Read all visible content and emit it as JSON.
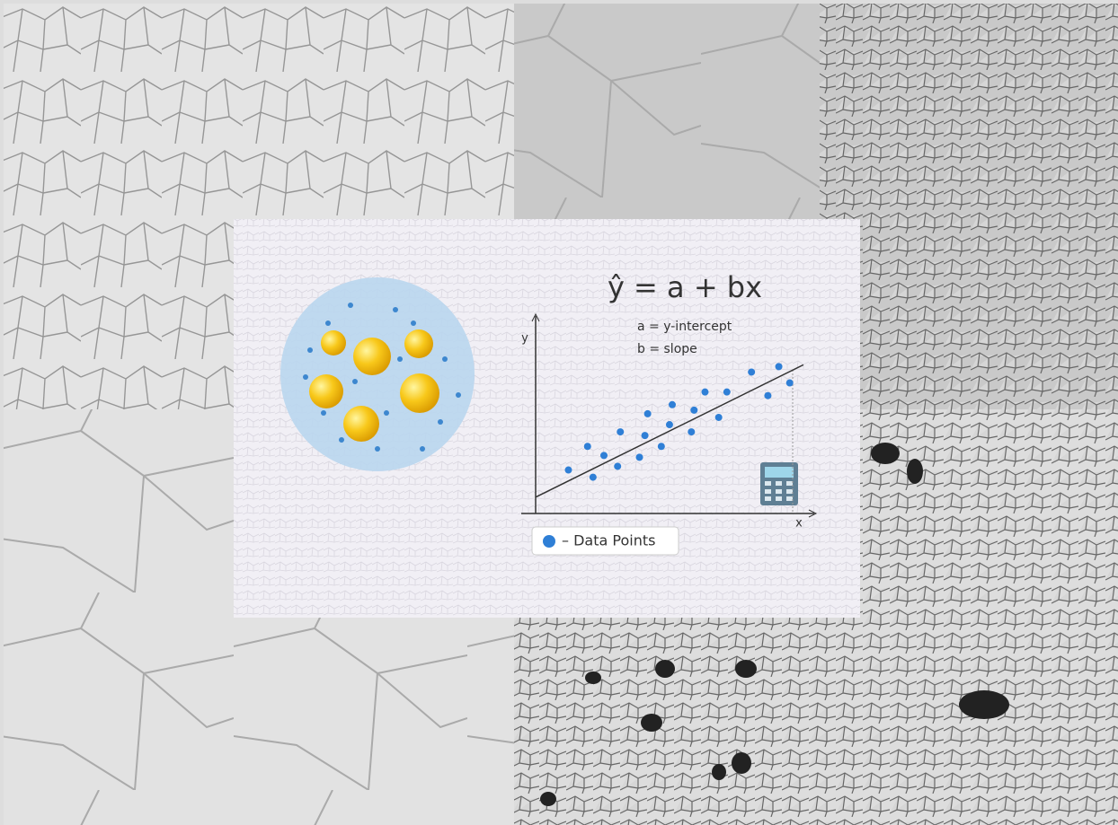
{
  "chart_data": {
    "type": "scatter",
    "title": "ŷ = a + bx",
    "annotations": [
      "a = y-intercept",
      "b = slope"
    ],
    "x_label": "x",
    "y_label": "y",
    "xlim": [
      0,
      100
    ],
    "ylim": [
      0,
      100
    ],
    "series": [
      {
        "name": "– Data Points",
        "color": "#2f7fd6",
        "x": [
          12,
          19,
          21,
          25,
          30,
          31,
          38,
          40,
          41,
          46,
          49,
          50,
          57,
          58,
          62,
          67,
          70,
          79,
          85,
          89,
          93
        ],
        "values": [
          24,
          37,
          20,
          32,
          26,
          45,
          31,
          43,
          55,
          37,
          49,
          60,
          45,
          57,
          67,
          53,
          67,
          78,
          65,
          81,
          72
        ]
      },
      {
        "type": "line",
        "color": "#333333",
        "x": [
          0,
          98
        ],
        "values": [
          9,
          82
        ]
      }
    ],
    "legend": "bottom-left"
  }
}
